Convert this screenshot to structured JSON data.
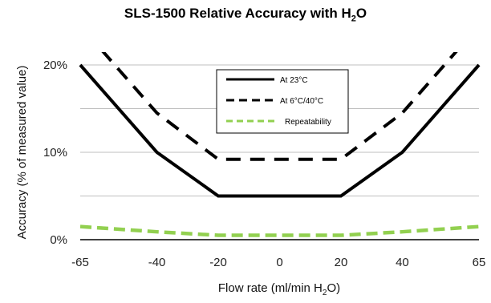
{
  "chart_data": {
    "type": "line",
    "title_main": "SLS-1500 Relative Accuracy with H",
    "title_sub": "2",
    "title_tail": "O",
    "xlabel_main": "Flow rate (ml/min H",
    "xlabel_sub": "2",
    "xlabel_tail": "O)",
    "ylabel": "Accuracy (% of measured value)",
    "x_ticks": [
      "-65",
      "-40",
      "-20",
      "0",
      "20",
      "40",
      "65"
    ],
    "x_tick_values": [
      -65,
      -40,
      -20,
      0,
      20,
      40,
      65
    ],
    "y_ticks": [
      "0%",
      "10%",
      "20%"
    ],
    "y_tick_values": [
      0,
      10,
      20
    ],
    "xlim": [
      -65,
      65
    ],
    "ylim": [
      0,
      20
    ],
    "grid": "horizontal",
    "legend_position": "top-center",
    "series": [
      {
        "name": "At 23°C",
        "color": "#000000",
        "style": "solid",
        "points": [
          [
            -65,
            20
          ],
          [
            -40,
            10
          ],
          [
            -20,
            5
          ],
          [
            20,
            5
          ],
          [
            40,
            10
          ],
          [
            65,
            20
          ]
        ]
      },
      {
        "name": "At 6°C/40°C",
        "color": "#000000",
        "style": "dashed",
        "points": [
          [
            -58,
            21.7
          ],
          [
            -40,
            14.5
          ],
          [
            -20,
            9.2
          ],
          [
            20,
            9.2
          ],
          [
            40,
            14.5
          ],
          [
            58,
            21.7
          ]
        ]
      },
      {
        "name": "Repeatability",
        "color": "#92d050",
        "style": "dashed",
        "points": [
          [
            -65,
            1.5
          ],
          [
            -40,
            0.9
          ],
          [
            -20,
            0.5
          ],
          [
            20,
            0.5
          ],
          [
            40,
            0.9
          ],
          [
            65,
            1.5
          ]
        ]
      }
    ]
  }
}
